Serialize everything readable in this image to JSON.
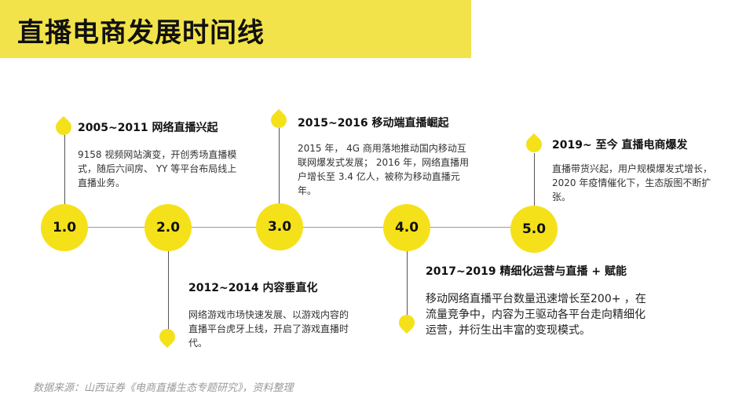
{
  "title": "直播电商发展时间线",
  "colors": {
    "accent": "#f5e11a",
    "title_bar": "#f2e34a",
    "line": "#9a9a9a"
  },
  "nodes": [
    {
      "label": "1.0"
    },
    {
      "label": "2.0"
    },
    {
      "label": "3.0"
    },
    {
      "label": "4.0"
    },
    {
      "label": "5.0"
    }
  ],
  "events": [
    {
      "heading": "2005~2011  网络直播兴起",
      "desc": "9158 视频网站演变，开创秀场直播模式，随后六间房、 YY 等平台布局线上直播业务。"
    },
    {
      "heading": "2012~2014  内容垂直化",
      "desc": "网络游戏市场快速发展、以游戏内容的直播平台虎牙上线，开启了游戏直播时代。"
    },
    {
      "heading": "2015~2016  移动端直播崛起",
      "desc": "2015 年， 4G 商用落地推动国内移动互联网爆发式发展； 2016 年，网络直播用户增长至 3.4 亿人，被称为移动直播元年。"
    },
    {
      "heading": "2017~2019  精细化运营与直播 + 赋能",
      "desc": "移动网络直播平台数量迅速增长至200+ ，在流量竞争中，内容为王驱动各平台走向精细化运营，并衍生出丰富的变现模式。"
    },
    {
      "heading": "2019~ 至今 直播电商爆发",
      "desc": "直播带货兴起，用户规模爆发式增长， 2020 年疫情催化下，生态版图不断扩张。"
    }
  ],
  "source": "数据来源：山西证券《电商直播生态专题研究》，资料整理"
}
